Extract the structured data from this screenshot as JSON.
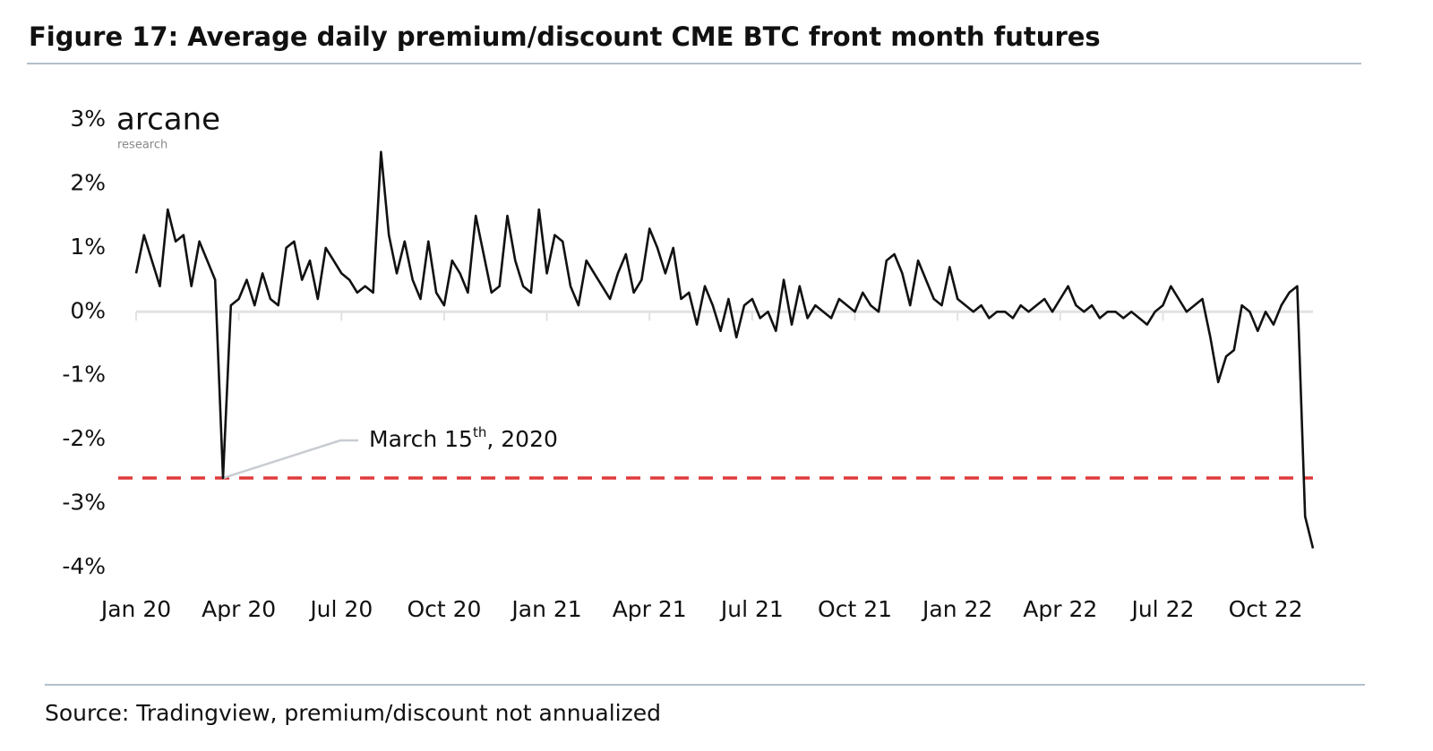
{
  "chart_data": {
    "type": "line",
    "title": "Figure 17: Average daily premium/discount CME BTC front month futures",
    "logo": {
      "name": "arcane",
      "sub": "research"
    },
    "source": "Source: Tradingview, premium/discount not annualized",
    "annotation": {
      "parts": [
        "March 15",
        "th",
        ", 2020"
      ],
      "index": 11
    },
    "threshold": {
      "value": -2.6,
      "color": "#e03a3a"
    },
    "categories": [
      "Jan 20",
      null,
      null,
      null,
      null,
      null,
      null,
      null,
      null,
      null,
      null,
      null,
      null,
      "Apr 20",
      null,
      null,
      null,
      null,
      null,
      null,
      null,
      null,
      null,
      null,
      null,
      null,
      "Jul 20",
      null,
      null,
      null,
      null,
      null,
      null,
      null,
      null,
      null,
      null,
      null,
      null,
      "Oct 20",
      null,
      null,
      null,
      null,
      null,
      null,
      null,
      null,
      null,
      null,
      null,
      null,
      "Jan 21",
      null,
      null,
      null,
      null,
      null,
      null,
      null,
      null,
      null,
      null,
      null,
      null,
      "Apr 21",
      null,
      null,
      null,
      null,
      null,
      null,
      null,
      null,
      null,
      null,
      null,
      null,
      "Jul 21",
      null,
      null,
      null,
      null,
      null,
      null,
      null,
      null,
      null,
      null,
      null,
      null,
      "Oct 21",
      null,
      null,
      null,
      null,
      null,
      null,
      null,
      null,
      null,
      null,
      null,
      null,
      "Jan 22",
      null,
      null,
      null,
      null,
      null,
      null,
      null,
      null,
      null,
      null,
      null,
      null,
      "Apr 22",
      null,
      null,
      null,
      null,
      null,
      null,
      null,
      null,
      null,
      null,
      null,
      null,
      "Jul 22",
      null,
      null,
      null,
      null,
      null,
      null,
      null,
      null,
      null,
      null,
      null,
      null,
      "Oct 22",
      null,
      null,
      null,
      null,
      null,
      null
    ],
    "series": [
      {
        "name": "Premium/discount",
        "color": "#111111",
        "values": [
          0.6,
          1.2,
          0.8,
          0.4,
          1.6,
          1.1,
          1.2,
          0.4,
          1.1,
          0.8,
          0.5,
          -2.6,
          0.1,
          0.2,
          0.5,
          0.1,
          0.6,
          0.2,
          0.1,
          1.0,
          1.1,
          0.5,
          0.8,
          0.2,
          1.0,
          0.8,
          0.6,
          0.5,
          0.3,
          0.4,
          0.3,
          2.5,
          1.2,
          0.6,
          1.1,
          0.5,
          0.2,
          1.1,
          0.3,
          0.1,
          0.8,
          0.6,
          0.3,
          1.5,
          0.9,
          0.3,
          0.4,
          1.5,
          0.8,
          0.4,
          0.3,
          1.6,
          0.6,
          1.2,
          1.1,
          0.4,
          0.1,
          0.8,
          0.6,
          0.4,
          0.2,
          0.6,
          0.9,
          0.3,
          0.5,
          1.3,
          1.0,
          0.6,
          1.0,
          0.2,
          0.3,
          -0.2,
          0.4,
          0.1,
          -0.3,
          0.2,
          -0.4,
          0.1,
          0.2,
          -0.1,
          0.0,
          -0.3,
          0.5,
          -0.2,
          0.4,
          -0.1,
          0.1,
          0.0,
          -0.1,
          0.2,
          0.1,
          0.0,
          0.3,
          0.1,
          0.0,
          0.8,
          0.9,
          0.6,
          0.1,
          0.8,
          0.5,
          0.2,
          0.1,
          0.7,
          0.2,
          0.1,
          0.0,
          0.1,
          -0.1,
          0.0,
          0.0,
          -0.1,
          0.1,
          0.0,
          0.1,
          0.2,
          0.0,
          0.2,
          0.4,
          0.1,
          0.0,
          0.1,
          -0.1,
          0.0,
          0.0,
          -0.1,
          0.0,
          -0.1,
          -0.2,
          0.0,
          0.1,
          0.4,
          0.2,
          0.0,
          0.1,
          0.2,
          -0.4,
          -1.1,
          -0.7,
          -0.6,
          0.1,
          0.0,
          -0.3,
          0.0,
          -0.2,
          0.1,
          0.3,
          0.4,
          -3.2,
          -3.7
        ]
      }
    ],
    "ylim": [
      -4,
      3
    ],
    "yticks": [
      {
        "value": 3,
        "label": "3%"
      },
      {
        "value": 2,
        "label": "2%"
      },
      {
        "value": 1,
        "label": "1%"
      },
      {
        "value": 0,
        "label": "0%"
      },
      {
        "value": -1,
        "label": "-1%"
      },
      {
        "value": -2,
        "label": "-2%"
      },
      {
        "value": -3,
        "label": "-3%"
      },
      {
        "value": -4,
        "label": "-4%"
      }
    ],
    "grid": false
  }
}
